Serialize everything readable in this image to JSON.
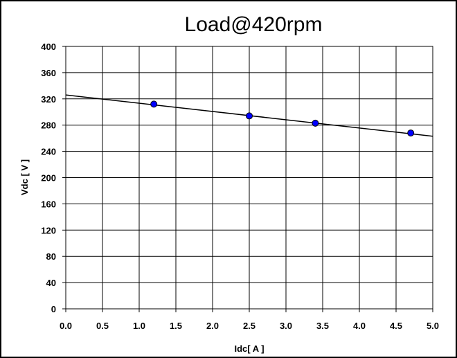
{
  "chart_data": {
    "type": "scatter",
    "title": "Load@420rpm",
    "xlabel": "Idc[ A ]",
    "ylabel": "Vdc [ V ]",
    "xlim": [
      0,
      5
    ],
    "ylim": [
      0,
      400
    ],
    "x_ticks": [
      "0.0",
      "0.5",
      "1.0",
      "1.5",
      "2.0",
      "2.5",
      "3.0",
      "3.5",
      "4.0",
      "4.5",
      "5.0"
    ],
    "y_ticks": [
      "0",
      "40",
      "80",
      "120",
      "160",
      "200",
      "240",
      "280",
      "320",
      "360",
      "400"
    ],
    "grid": true,
    "series": [
      {
        "x": [
          1.2,
          2.5,
          3.4,
          4.7
        ],
        "y": [
          312,
          294,
          283,
          268
        ],
        "marker": "circle",
        "color": "#0000ff"
      }
    ],
    "trendline": {
      "type": "linear",
      "x": [
        0,
        5
      ],
      "y": [
        326,
        263
      ],
      "color": "#000000"
    }
  }
}
